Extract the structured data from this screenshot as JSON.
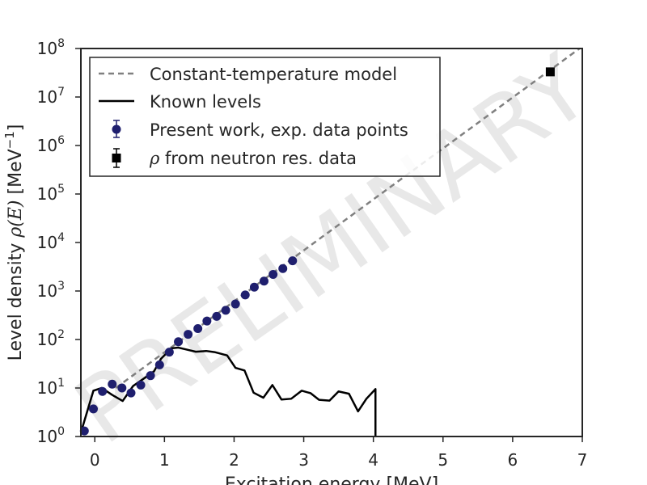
{
  "chart_data": {
    "type": "scatter",
    "title": "",
    "xlabel": "Excitation energy [MeV]",
    "ylabel_prefix": "Level density ",
    "ylabel_math": "ρ(E)",
    "ylabel_unit": " [MeV",
    "ylabel_unit_exp": "−1",
    "ylabel_unit_close": "]",
    "xlim": [
      -0.2,
      7
    ],
    "ylim_log10": [
      0,
      8
    ],
    "yscale": "log",
    "grid": false,
    "legend_placement": "top-left",
    "watermark": "PRELIMINARY",
    "x_ticks": [
      "0",
      "1",
      "2",
      "3",
      "4",
      "5",
      "6",
      "7"
    ],
    "y_ticks": [
      {
        "base": "10",
        "exp": "0"
      },
      {
        "base": "10",
        "exp": "1"
      },
      {
        "base": "10",
        "exp": "2"
      },
      {
        "base": "10",
        "exp": "3"
      },
      {
        "base": "10",
        "exp": "4"
      },
      {
        "base": "10",
        "exp": "5"
      },
      {
        "base": "10",
        "exp": "6"
      },
      {
        "base": "10",
        "exp": "7"
      },
      {
        "base": "10",
        "exp": "8"
      }
    ],
    "series": [
      {
        "name": "Constant-temperature model",
        "kind": "dashed-line",
        "color": "#808080",
        "x": [
          0.3,
          7.0
        ],
        "y": [
          10,
          110000000.0
        ]
      },
      {
        "name": "Known levels",
        "kind": "line",
        "color": "#000000",
        "x": [
          -0.2,
          -0.02,
          0.1,
          0.25,
          0.4,
          0.55,
          0.7,
          0.85,
          0.95,
          1.1,
          1.2,
          1.3,
          1.45,
          1.6,
          1.72,
          1.9,
          2.02,
          2.15,
          2.28,
          2.42,
          2.55,
          2.68,
          2.82,
          2.97,
          3.1,
          3.22,
          3.37,
          3.5,
          3.65,
          3.78,
          3.9,
          4.03,
          4.03
        ],
        "y": [
          1.2,
          8.8,
          10.0,
          7.2,
          5.4,
          11.0,
          15.5,
          22.0,
          40,
          66,
          68,
          63,
          56,
          58,
          55,
          47,
          26,
          23,
          8,
          6.3,
          11.5,
          5.8,
          6.0,
          8.8,
          7.8,
          5.7,
          5.5,
          8.5,
          7.6,
          3.3,
          6.0,
          9.5,
          1.0
        ]
      },
      {
        "name": "Present work, exp. data points",
        "kind": "markers-circle",
        "color": "#1f1f6e",
        "x": [
          -0.15,
          -0.02,
          0.11,
          0.25,
          0.39,
          0.52,
          0.66,
          0.8,
          0.93,
          1.07,
          1.2,
          1.34,
          1.48,
          1.61,
          1.75,
          1.88,
          2.02,
          2.16,
          2.29,
          2.43,
          2.56,
          2.7,
          2.84
        ],
        "y": [
          1.3,
          3.7,
          8.5,
          12,
          10,
          7.9,
          11.5,
          18,
          30,
          55,
          90,
          128,
          168,
          240,
          300,
          400,
          540,
          830,
          1200,
          1600,
          2200,
          2900,
          4200
        ]
      },
      {
        "name": "ρ from neutron res. data",
        "name_math": "ρ",
        "name_rest": " from neutron res. data",
        "kind": "marker-square",
        "color": "#000000",
        "x": [
          6.54
        ],
        "y": [
          33000000.0
        ]
      }
    ]
  }
}
